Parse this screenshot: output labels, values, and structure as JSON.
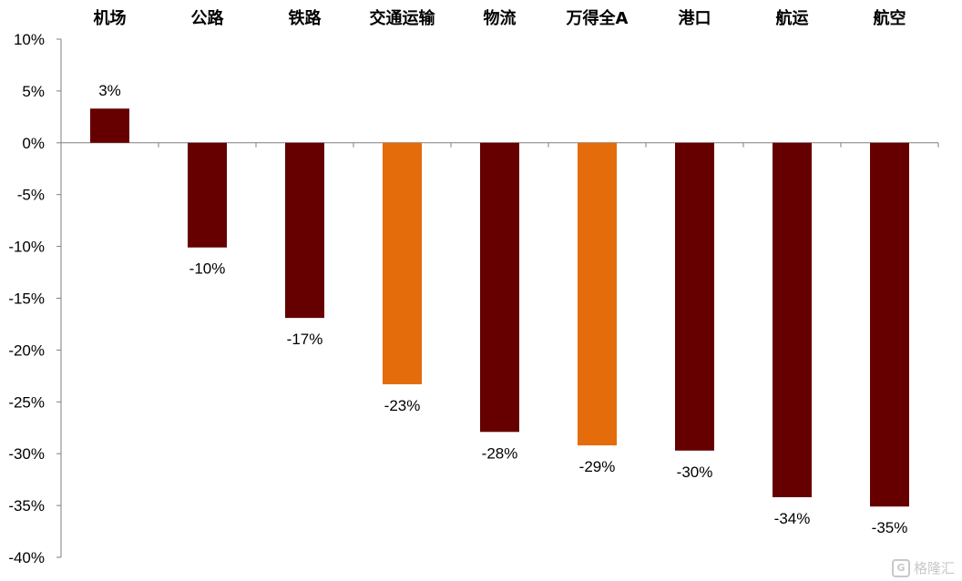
{
  "chart_data": {
    "type": "bar",
    "categories": [
      "机场",
      "公路",
      "铁路",
      "交通运输",
      "物流",
      "万得全A",
      "港口",
      "航运",
      "航空"
    ],
    "values": [
      3.3,
      -10.1,
      -16.9,
      -23.3,
      -27.9,
      -29.2,
      -29.7,
      -34.2,
      -35.1
    ],
    "data_labels": [
      "3%",
      "-10%",
      "-17%",
      "-23%",
      "-28%",
      "-29%",
      "-30%",
      "-34%",
      "-35%"
    ],
    "highlight": [
      false,
      false,
      false,
      true,
      false,
      true,
      false,
      false,
      false
    ],
    "ylim": [
      -40,
      10
    ],
    "yticks": [
      10,
      5,
      0,
      -5,
      -10,
      -15,
      -20,
      -25,
      -30,
      -35,
      -40
    ],
    "ytick_labels": [
      "10%",
      "5%",
      "0%",
      "-5%",
      "-10%",
      "-15%",
      "-20%",
      "-25%",
      "-30%",
      "-35%",
      "-40%"
    ],
    "category_axis_position": "top",
    "grid": false,
    "colors": {
      "default": "#660000",
      "highlight": "#e46c0a",
      "axis": "#7f7f7f"
    }
  },
  "watermark": {
    "text": "格隆汇",
    "icon": "G"
  }
}
